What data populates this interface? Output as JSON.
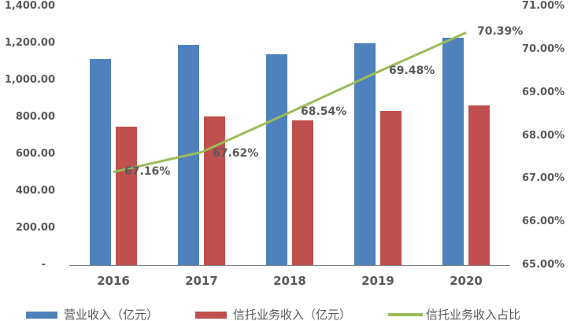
{
  "chart_data": {
    "type": "bar",
    "subtype": "combo-bar-line-dual-axis",
    "title": "",
    "categories": [
      "2016",
      "2017",
      "2018",
      "2019",
      "2020"
    ],
    "series": [
      {
        "name": "营业收入（亿元）",
        "type": "bar",
        "axis": "left",
        "color": "#4F81BD",
        "values": [
          1116,
          1191,
          1141,
          1200,
          1228
        ]
      },
      {
        "name": "信托业务收入（亿元）",
        "type": "bar",
        "axis": "left",
        "color": "#C0504D",
        "values": [
          750,
          805,
          782,
          834,
          864
        ]
      },
      {
        "name": "信托业务收入占比",
        "type": "line",
        "axis": "right",
        "color": "#9BBB59",
        "values": [
          67.16,
          67.62,
          68.54,
          69.48,
          70.39
        ],
        "point_labels": [
          "67.16%",
          "67.62%",
          "68.54%",
          "69.48%",
          "70.39%"
        ]
      }
    ],
    "left_axis": {
      "min": 0,
      "max": 1400,
      "tick_step": 200,
      "tick_labels": [
        "1,400.00",
        "1,200.00",
        "1,000.00",
        "800.00",
        "600.00",
        "400.00",
        "200.00",
        "-"
      ]
    },
    "right_axis": {
      "min": 65,
      "max": 71,
      "tick_step": 1,
      "tick_labels": [
        "71.00%",
        "70.00%",
        "69.00%",
        "68.00%",
        "67.00%",
        "66.00%",
        "65.00%"
      ]
    },
    "grid": false,
    "legend_position": "bottom",
    "text_color": "#595959",
    "axis_line_color": "#808080"
  }
}
